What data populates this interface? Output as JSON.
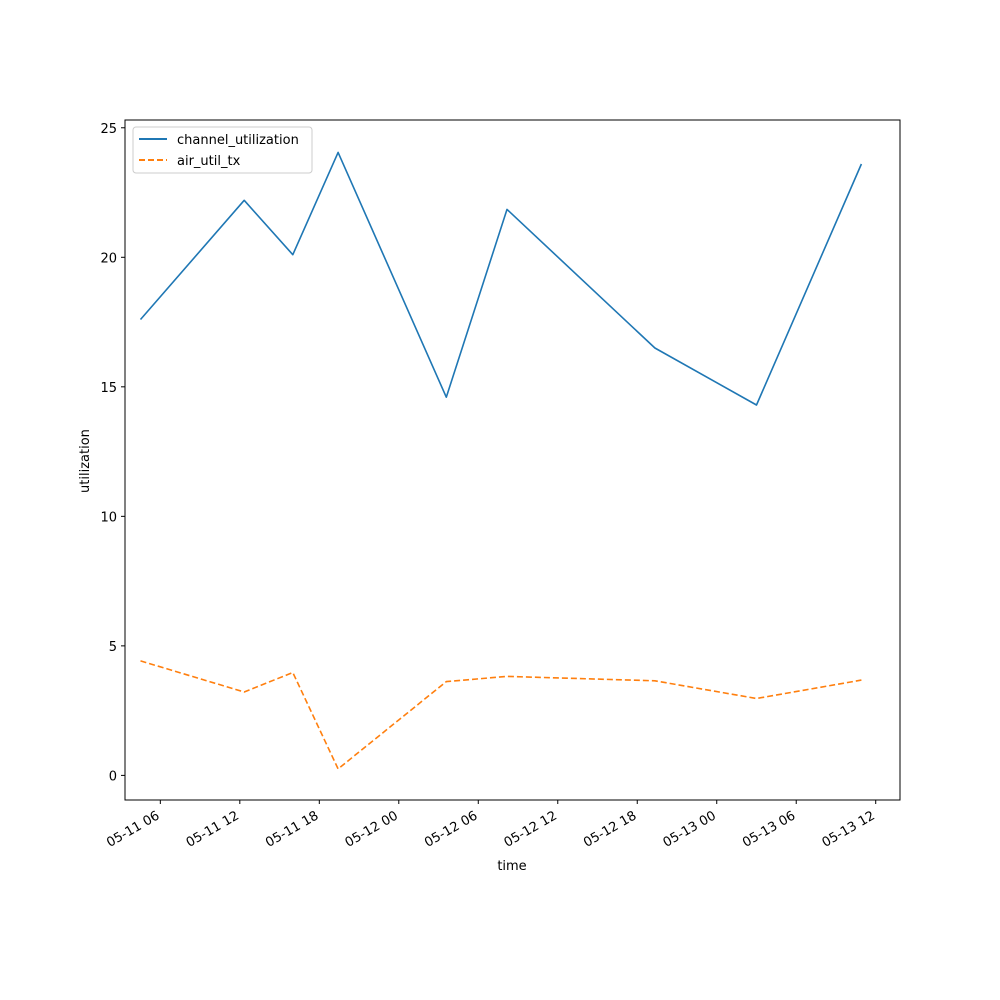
{
  "chart_data": {
    "type": "line",
    "xlabel": "time",
    "ylabel": "utilization",
    "x_ticks": [
      "05-11 06",
      "05-11 12",
      "05-11 18",
      "05-12 00",
      "05-12 06",
      "05-12 12",
      "05-12 18",
      "05-13 00",
      "05-13 06",
      "05-13 12"
    ],
    "y_ticks": [
      0,
      5,
      10,
      15,
      20,
      25
    ],
    "xlim": [
      "05-11 03:20",
      "05-13 13:50"
    ],
    "ylim": [
      -0.95,
      25.3
    ],
    "x": [
      "05-11 04:30",
      "05-11 12:20",
      "05-11 16:00",
      "05-11 19:25",
      "05-12 03:35",
      "05-12 08:10",
      "05-12 19:20",
      "05-13 03:00",
      "05-13 10:55"
    ],
    "series": [
      {
        "name": "channel_utilization",
        "color": "#1f77b4",
        "dash": "solid",
        "values": [
          17.6,
          22.2,
          20.1,
          24.05,
          14.6,
          21.85,
          16.5,
          14.3,
          23.6
        ]
      },
      {
        "name": "air_util_tx",
        "color": "#ff7f0e",
        "dash": "dashed",
        "values": [
          4.42,
          3.22,
          3.97,
          0.25,
          3.62,
          3.82,
          3.65,
          2.97,
          3.68
        ]
      }
    ],
    "legend_position": "top-left",
    "grid": false
  }
}
